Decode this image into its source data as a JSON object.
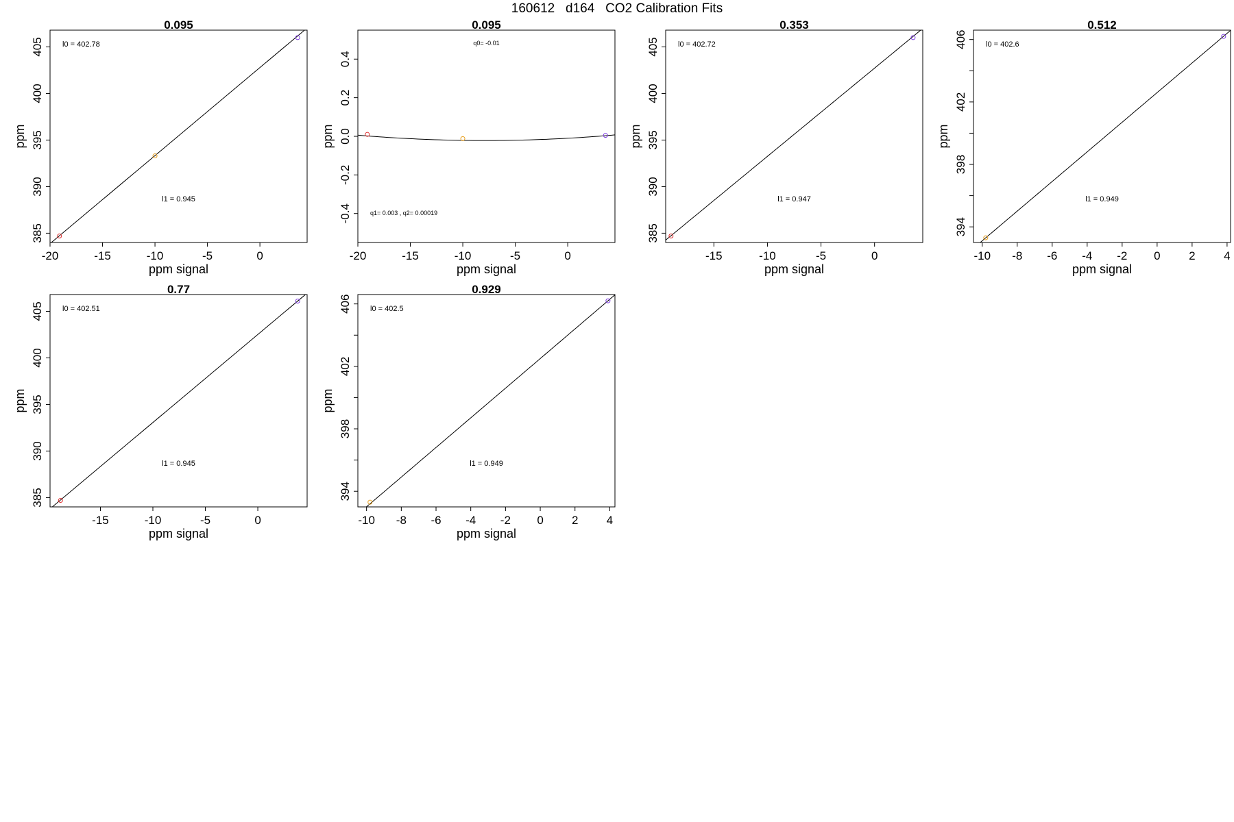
{
  "figure_title": "160612   d164   CO2 Calibration Fits",
  "chart_data": [
    {
      "type": "scatter",
      "title": "0.095",
      "xlabel": "ppm signal",
      "ylabel": "ppm",
      "xlim": [
        -20,
        4.5
      ],
      "ylim": [
        384,
        406.8
      ],
      "xticks": [
        -20,
        -15,
        -10,
        -5,
        0
      ],
      "yticks": [
        385,
        390,
        395,
        400,
        405
      ],
      "points": [
        {
          "x": -19.1,
          "y": 384.7,
          "color": "#e03030"
        },
        {
          "x": -10.0,
          "y": 393.3,
          "color": "#e8a020"
        },
        {
          "x": 3.6,
          "y": 406.0,
          "color": "#8040e0"
        }
      ],
      "fit": {
        "kind": "linear",
        "intercept": 402.78,
        "slope": 0.945
      },
      "annotations": [
        {
          "text": "l0 =  402.78",
          "pos": "top-left"
        },
        {
          "text": "l1 =  0.945",
          "pos": "mid-bottom"
        }
      ],
      "grid": false
    },
    {
      "type": "scatter",
      "title": "0.095",
      "xlabel": "ppm signal",
      "ylabel": "ppm",
      "xlim": [
        -20,
        4.5
      ],
      "ylim": [
        -0.55,
        0.55
      ],
      "xticks": [
        -20,
        -15,
        -10,
        -5,
        0
      ],
      "yticks": [
        -0.4,
        -0.2,
        0.0,
        0.2,
        0.4
      ],
      "ytick_labels": [
        "-0.4",
        "-0.2",
        "0.0",
        "0.2",
        "0.4"
      ],
      "points": [
        {
          "x": -19.1,
          "y": 0.01,
          "color": "#e03030"
        },
        {
          "x": -10.0,
          "y": -0.012,
          "color": "#e8a020"
        },
        {
          "x": 3.6,
          "y": 0.005,
          "color": "#8040e0"
        }
      ],
      "fit": {
        "kind": "quadratic",
        "q0": -0.01,
        "q1": 0.003,
        "q2": 0.00019
      },
      "annotations": [
        {
          "text": "q0=  -0.01",
          "pos": "top-center"
        },
        {
          "text": "q1=  0.003 , q2=  0.00019",
          "pos": "bottom-left"
        }
      ],
      "grid": false
    },
    {
      "type": "scatter",
      "title": "0.353",
      "xlabel": "ppm signal",
      "ylabel": "ppm",
      "xlim": [
        -19.5,
        4.5
      ],
      "ylim": [
        384,
        406.8
      ],
      "xticks": [
        -15,
        -10,
        -5,
        0
      ],
      "yticks": [
        385,
        390,
        395,
        400,
        405
      ],
      "points": [
        {
          "x": -19.0,
          "y": 384.7,
          "color": "#e03030"
        },
        {
          "x": 3.6,
          "y": 406.0,
          "color": "#8040e0"
        }
      ],
      "fit": {
        "kind": "linear",
        "intercept": 402.72,
        "slope": 0.947
      },
      "annotations": [
        {
          "text": "l0 =  402.72",
          "pos": "top-left"
        },
        {
          "text": "l1 =  0.947",
          "pos": "mid-bottom"
        }
      ],
      "grid": false
    },
    {
      "type": "scatter",
      "title": "0.512",
      "xlabel": "ppm signal",
      "ylabel": "ppm",
      "xlim": [
        -10.5,
        4.2
      ],
      "ylim": [
        393.0,
        406.6
      ],
      "xticks": [
        -10,
        -8,
        -6,
        -4,
        -2,
        0,
        2,
        4
      ],
      "yticks": [
        394,
        398,
        402,
        406
      ],
      "yticks_minor": [
        396,
        400,
        404
      ],
      "points": [
        {
          "x": -9.8,
          "y": 393.3,
          "color": "#e8a020"
        },
        {
          "x": 3.8,
          "y": 406.2,
          "color": "#8040e0"
        }
      ],
      "fit": {
        "kind": "linear",
        "intercept": 402.6,
        "slope": 0.949
      },
      "annotations": [
        {
          "text": "l0 =  402.6",
          "pos": "top-left"
        },
        {
          "text": "l1 =  0.949",
          "pos": "mid-bottom"
        }
      ],
      "grid": false
    },
    {
      "type": "scatter",
      "title": "0.77",
      "xlabel": "ppm signal",
      "ylabel": "ppm",
      "xlim": [
        -19.8,
        4.7
      ],
      "ylim": [
        384,
        406.8
      ],
      "xticks": [
        -15,
        -10,
        -5,
        0
      ],
      "yticks": [
        385,
        390,
        395,
        400,
        405
      ],
      "points": [
        {
          "x": -18.8,
          "y": 384.7,
          "color": "#e03030"
        },
        {
          "x": 3.8,
          "y": 406.1,
          "color": "#8040e0"
        }
      ],
      "fit": {
        "kind": "linear",
        "intercept": 402.51,
        "slope": 0.945
      },
      "annotations": [
        {
          "text": "l0 =  402.51",
          "pos": "top-left"
        },
        {
          "text": "l1 =  0.945",
          "pos": "mid-bottom"
        }
      ],
      "grid": false
    },
    {
      "type": "scatter",
      "title": "0.929",
      "xlabel": "ppm signal",
      "ylabel": "ppm",
      "xlim": [
        -10.5,
        4.3
      ],
      "ylim": [
        393.0,
        406.6
      ],
      "xticks": [
        -10,
        -8,
        -6,
        -4,
        -2,
        0,
        2,
        4
      ],
      "yticks": [
        394,
        398,
        402,
        406
      ],
      "yticks_minor": [
        396,
        400,
        404
      ],
      "points": [
        {
          "x": -9.8,
          "y": 393.3,
          "color": "#e8a020"
        },
        {
          "x": 3.9,
          "y": 406.2,
          "color": "#8040e0"
        }
      ],
      "fit": {
        "kind": "linear",
        "intercept": 402.5,
        "slope": 0.949
      },
      "annotations": [
        {
          "text": "l0 =  402.5",
          "pos": "top-left"
        },
        {
          "text": "l1 =  0.949",
          "pos": "mid-bottom"
        }
      ],
      "grid": false
    }
  ]
}
